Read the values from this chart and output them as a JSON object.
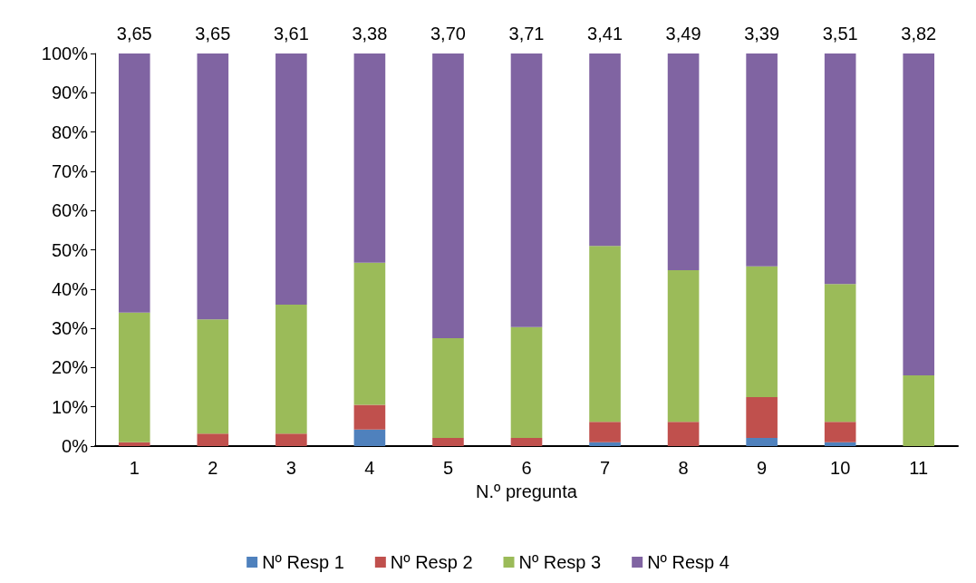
{
  "chart_data": {
    "type": "bar",
    "stacked": true,
    "xlabel": "N.º pregunta",
    "categories": [
      "1",
      "2",
      "3",
      "4",
      "5",
      "6",
      "7",
      "8",
      "9",
      "10",
      "11"
    ],
    "series": [
      {
        "name": "Nº Resp 1",
        "color": "#4f81bd",
        "values": [
          0,
          0,
          0,
          4.2,
          0,
          0,
          1,
          0,
          2.1,
          1,
          0
        ]
      },
      {
        "name": "Nº Resp 2",
        "color": "#c0504d",
        "values": [
          1,
          3.2,
          3.2,
          6.3,
          2.1,
          2.1,
          5.2,
          6.2,
          10.4,
          5.2,
          0
        ]
      },
      {
        "name": "Nº Resp 3",
        "color": "#9bbb59",
        "values": [
          33,
          29.1,
          32.8,
          36.2,
          25.4,
          28.2,
          44.8,
          38.6,
          33.3,
          35.1,
          18
        ]
      },
      {
        "name": "Nº Resp 4",
        "color": "#8064a2",
        "values": [
          66,
          67.7,
          64,
          53.3,
          72.5,
          69.7,
          49,
          55.2,
          54.2,
          58.7,
          82
        ]
      }
    ],
    "ylim": [
      0,
      100
    ],
    "yticks": [
      {
        "value": 0,
        "label": "0%"
      },
      {
        "value": 10,
        "label": "10%"
      },
      {
        "value": 20,
        "label": "20%"
      },
      {
        "value": 30,
        "label": "30%"
      },
      {
        "value": 40,
        "label": "40%"
      },
      {
        "value": 50,
        "label": "50%"
      },
      {
        "value": 60,
        "label": "60%"
      },
      {
        "value": 70,
        "label": "70%"
      },
      {
        "value": 80,
        "label": "80%"
      },
      {
        "value": 90,
        "label": "90%"
      },
      {
        "value": 100,
        "label": "100%"
      }
    ],
    "annotations": [
      {
        "text": "3,65",
        "x": "1",
        "y": 100
      },
      {
        "text": "3,65",
        "x": "2",
        "y": 100
      },
      {
        "text": "3,61",
        "x": "3",
        "y": 100
      },
      {
        "text": "3,38",
        "x": "4",
        "y": 100
      },
      {
        "text": "3,70",
        "x": "5",
        "y": 100
      },
      {
        "text": "3,71",
        "x": "6",
        "y": 100
      },
      {
        "text": "3,41",
        "x": "7",
        "y": 100
      },
      {
        "text": "3,49",
        "x": "8",
        "y": 100
      },
      {
        "text": "3,39",
        "x": "9",
        "y": 100
      },
      {
        "text": "3,51",
        "x": "10",
        "y": 100
      },
      {
        "text": "3,82",
        "x": "11",
        "y": 100
      }
    ],
    "grid": false,
    "legend": "bottom"
  }
}
